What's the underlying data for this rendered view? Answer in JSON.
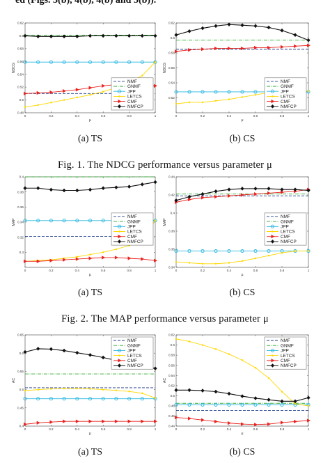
{
  "top_text": "ed (Figs. 3(b), 4(b), 4(b) and 5(b)).",
  "captions": [
    "Fig. 1.  The NDCG performance versus parameter μ",
    "Fig. 2.  The MAP performance versus parameter μ"
  ],
  "series_styles": {
    "NMF": {
      "color": "#1f3a8a",
      "dash": "4,2",
      "marker": "none"
    },
    "GNMF": {
      "color": "#33aa33",
      "dash": "5,1.5,1,1.5",
      "marker": "none"
    },
    "JPP": {
      "color": "#29b6e0",
      "dash": "",
      "marker": "circle"
    },
    "LETCS": {
      "color": "#ffd800",
      "dash": "",
      "marker": "dot"
    },
    "CMF": {
      "color": "#e8231f",
      "dash": "",
      "marker": "triangle"
    },
    "NMFCP": {
      "color": "#111111",
      "dash": "",
      "marker": "diamond"
    }
  },
  "chart_data": [
    {
      "id": "ndcg-ts",
      "type": "line",
      "subcaption": "(a)  TS",
      "ylabel": "NDCG",
      "xlabel": "μ",
      "xlim": [
        0,
        1
      ],
      "ylim": [
        0.48,
        0.62
      ],
      "xticks": [
        "0",
        "0.2",
        "0.4",
        "0.6",
        "0.8",
        "1"
      ],
      "yticks": [
        "0.48",
        "0.5",
        "0.52",
        "0.54",
        "0.56",
        "0.58",
        "0.6",
        "0.62"
      ],
      "legend": "bottom-right",
      "x": [
        0,
        0.1,
        0.2,
        0.3,
        0.4,
        0.5,
        0.6,
        0.7,
        0.8,
        0.9,
        1.0
      ],
      "series": [
        {
          "name": "NMF",
          "values": [
            0.51,
            0.51,
            0.51,
            0.51,
            0.51,
            0.51,
            0.51,
            0.51,
            0.51,
            0.51,
            0.51
          ]
        },
        {
          "name": "GNMF",
          "values": [
            0.601,
            0.601,
            0.601,
            0.601,
            0.601,
            0.601,
            0.601,
            0.601,
            0.601,
            0.601,
            0.601
          ]
        },
        {
          "name": "JPP",
          "values": [
            0.559,
            0.559,
            0.559,
            0.559,
            0.559,
            0.559,
            0.559,
            0.559,
            0.559,
            0.559,
            0.559
          ]
        },
        {
          "name": "LETCS",
          "values": [
            0.489,
            0.492,
            0.496,
            0.5,
            0.504,
            0.508,
            0.513,
            0.519,
            0.527,
            0.538,
            0.559
          ]
        },
        {
          "name": "CMF",
          "values": [
            0.51,
            0.511,
            0.512,
            0.514,
            0.516,
            0.519,
            0.522,
            0.524,
            0.524,
            0.523,
            0.522
          ]
        },
        {
          "name": "NMFCP",
          "values": [
            0.6,
            0.599,
            0.599,
            0.599,
            0.599,
            0.6,
            0.6,
            0.6,
            0.6,
            0.6,
            0.6
          ]
        }
      ]
    },
    {
      "id": "ndcg-cs",
      "type": "line",
      "subcaption": "(b)  CS",
      "ylabel": "NDCG",
      "xlabel": "μ",
      "xlim": [
        0,
        1
      ],
      "ylim": [
        0.5,
        0.62
      ],
      "xticks": [
        "0",
        "0.2",
        "0.4",
        "0.6",
        "0.8",
        "1"
      ],
      "yticks": [
        "0.52",
        "0.54",
        "0.56",
        "0.58",
        "0.6",
        "0.62"
      ],
      "legend": "bottom-right",
      "x": [
        0,
        0.1,
        0.2,
        0.3,
        0.4,
        0.5,
        0.6,
        0.7,
        0.8,
        0.9,
        1.0
      ],
      "series": [
        {
          "name": "NMF",
          "values": [
            0.585,
            0.585,
            0.585,
            0.585,
            0.585,
            0.585,
            0.585,
            0.585,
            0.585,
            0.585,
            0.585
          ]
        },
        {
          "name": "GNMF",
          "values": [
            0.597,
            0.597,
            0.597,
            0.597,
            0.597,
            0.597,
            0.597,
            0.597,
            0.597,
            0.597,
            0.597
          ]
        },
        {
          "name": "JPP",
          "values": [
            0.528,
            0.528,
            0.528,
            0.528,
            0.528,
            0.528,
            0.528,
            0.528,
            0.528,
            0.528,
            0.528
          ]
        },
        {
          "name": "LETCS",
          "values": [
            0.512,
            0.514,
            0.514,
            0.516,
            0.518,
            0.521,
            0.524,
            0.527,
            0.529,
            0.529,
            0.529
          ]
        },
        {
          "name": "CMF",
          "values": [
            0.582,
            0.584,
            0.585,
            0.586,
            0.586,
            0.586,
            0.587,
            0.587,
            0.588,
            0.589,
            0.59
          ]
        },
        {
          "name": "NMFCP",
          "values": [
            0.604,
            0.609,
            0.613,
            0.616,
            0.618,
            0.617,
            0.616,
            0.614,
            0.61,
            0.604,
            0.597
          ]
        }
      ]
    },
    {
      "id": "map-ts",
      "type": "line",
      "subcaption": "(a)  TS",
      "ylabel": "MAP",
      "xlabel": "μ",
      "xlim": [
        0,
        1
      ],
      "ylim": [
        0.28,
        0.4
      ],
      "xticks": [
        "0",
        "0.2",
        "0.4",
        "0.6",
        "0.8",
        "1"
      ],
      "yticks": [
        "0.3",
        "0.32",
        "0.34",
        "0.36",
        "0.38",
        "0.4"
      ],
      "legend": "right-center",
      "x": [
        0,
        0.1,
        0.2,
        0.3,
        0.4,
        0.5,
        0.6,
        0.7,
        0.8,
        0.9,
        1.0
      ],
      "series": [
        {
          "name": "NMF",
          "values": [
            0.321,
            0.321,
            0.321,
            0.321,
            0.321,
            0.321,
            0.321,
            0.321,
            0.321,
            0.321,
            0.321
          ]
        },
        {
          "name": "GNMF",
          "values": [
            0.4,
            0.4,
            0.4,
            0.4,
            0.4,
            0.4,
            0.4,
            0.4,
            0.4,
            0.4,
            0.4
          ]
        },
        {
          "name": "JPP",
          "values": [
            0.342,
            0.342,
            0.342,
            0.342,
            0.342,
            0.342,
            0.342,
            0.342,
            0.342,
            0.342,
            0.342
          ]
        },
        {
          "name": "LETCS",
          "values": [
            0.288,
            0.289,
            0.29,
            0.292,
            0.294,
            0.297,
            0.3,
            0.304,
            0.309,
            0.318,
            0.342
          ]
        },
        {
          "name": "CMF",
          "values": [
            0.288,
            0.288,
            0.289,
            0.29,
            0.291,
            0.292,
            0.293,
            0.293,
            0.292,
            0.291,
            0.289
          ]
        },
        {
          "name": "NMFCP",
          "values": [
            0.385,
            0.385,
            0.383,
            0.382,
            0.382,
            0.383,
            0.385,
            0.386,
            0.387,
            0.39,
            0.393
          ]
        }
      ]
    },
    {
      "id": "map-cs",
      "type": "line",
      "subcaption": "(b)  CS",
      "ylabel": "MAP",
      "xlabel": "μ",
      "xlim": [
        0,
        1
      ],
      "ylim": [
        0.34,
        0.44
      ],
      "xticks": [
        "0",
        "0.2",
        "0.4",
        "0.6",
        "0.8",
        "1"
      ],
      "yticks": [
        "0.34",
        "0.36",
        "0.38",
        "0.4",
        "0.42",
        "0.44"
      ],
      "legend": "right-center",
      "x": [
        0,
        0.1,
        0.2,
        0.3,
        0.4,
        0.5,
        0.6,
        0.7,
        0.8,
        0.9,
        1.0
      ],
      "series": [
        {
          "name": "NMF",
          "values": [
            0.419,
            0.419,
            0.419,
            0.419,
            0.419,
            0.419,
            0.419,
            0.419,
            0.419,
            0.419,
            0.419
          ]
        },
        {
          "name": "GNMF",
          "values": [
            0.421,
            0.421,
            0.421,
            0.421,
            0.421,
            0.421,
            0.421,
            0.421,
            0.421,
            0.421,
            0.421
          ]
        },
        {
          "name": "JPP",
          "values": [
            0.358,
            0.358,
            0.358,
            0.358,
            0.358,
            0.358,
            0.358,
            0.358,
            0.358,
            0.358,
            0.358
          ]
        },
        {
          "name": "LETCS",
          "values": [
            0.346,
            0.345,
            0.344,
            0.344,
            0.345,
            0.347,
            0.35,
            0.353,
            0.356,
            0.358,
            0.358
          ]
        },
        {
          "name": "CMF",
          "values": [
            0.412,
            0.415,
            0.417,
            0.418,
            0.419,
            0.42,
            0.421,
            0.422,
            0.423,
            0.424,
            0.426
          ]
        },
        {
          "name": "NMFCP",
          "values": [
            0.414,
            0.418,
            0.421,
            0.424,
            0.426,
            0.427,
            0.427,
            0.427,
            0.426,
            0.426,
            0.425
          ]
        }
      ]
    },
    {
      "id": "ac-ts",
      "type": "line",
      "subcaption": "(a)  TS",
      "ylabel": "AC",
      "xlabel": "μ",
      "xlim": [
        0,
        1
      ],
      "ylim": [
        0.4,
        0.65
      ],
      "xticks": [
        "0",
        "0.2",
        "0.4",
        "0.6",
        "0.8",
        "1"
      ],
      "yticks": [
        "0.4",
        "0.45",
        "0.5",
        "0.55",
        "0.6",
        "0.65"
      ],
      "legend": "top-right",
      "x": [
        0,
        0.1,
        0.2,
        0.3,
        0.4,
        0.5,
        0.6,
        0.7,
        0.8,
        0.9,
        1.0
      ],
      "series": [
        {
          "name": "NMF",
          "values": [
            0.505,
            0.505,
            0.505,
            0.505,
            0.505,
            0.505,
            0.505,
            0.505,
            0.505,
            0.505,
            0.505
          ]
        },
        {
          "name": "GNMF",
          "values": [
            0.543,
            0.543,
            0.543,
            0.543,
            0.543,
            0.543,
            0.543,
            0.543,
            0.543,
            0.543,
            0.543
          ]
        },
        {
          "name": "JPP",
          "values": [
            0.475,
            0.475,
            0.475,
            0.475,
            0.475,
            0.475,
            0.475,
            0.475,
            0.475,
            0.475,
            0.475
          ]
        },
        {
          "name": "LETCS",
          "values": [
            0.497,
            0.5,
            0.502,
            0.503,
            0.503,
            0.502,
            0.5,
            0.498,
            0.495,
            0.49,
            0.477
          ]
        },
        {
          "name": "CMF",
          "values": [
            0.405,
            0.409,
            0.411,
            0.413,
            0.413,
            0.413,
            0.413,
            0.413,
            0.413,
            0.413,
            0.413
          ]
        },
        {
          "name": "NMFCP",
          "values": [
            0.603,
            0.612,
            0.611,
            0.607,
            0.601,
            0.595,
            0.588,
            0.58,
            0.572,
            0.565,
            0.558
          ]
        }
      ]
    },
    {
      "id": "ac-cs",
      "type": "line",
      "subcaption": "(b)  CS",
      "ylabel": "AC",
      "xlabel": "μ",
      "xlim": [
        0,
        1
      ],
      "ylim": [
        0.44,
        0.62
      ],
      "xticks": [
        "0",
        "0.2",
        "0.4",
        "0.6",
        "0.8",
        "1"
      ],
      "yticks": [
        "0.44",
        "0.46",
        "0.48",
        "0.5",
        "0.52",
        "0.54",
        "0.56",
        "0.58",
        "0.6",
        "0.62"
      ],
      "legend": "top-right",
      "x": [
        0,
        0.1,
        0.2,
        0.3,
        0.4,
        0.5,
        0.6,
        0.7,
        0.8,
        0.9,
        1.0
      ],
      "series": [
        {
          "name": "NMF",
          "values": [
            0.471,
            0.471,
            0.471,
            0.471,
            0.471,
            0.471,
            0.471,
            0.471,
            0.471,
            0.471,
            0.471
          ]
        },
        {
          "name": "GNMF",
          "values": [
            0.485,
            0.485,
            0.485,
            0.485,
            0.485,
            0.485,
            0.485,
            0.485,
            0.485,
            0.485,
            0.485
          ]
        },
        {
          "name": "JPP",
          "values": [
            0.482,
            0.482,
            0.482,
            0.482,
            0.482,
            0.482,
            0.482,
            0.482,
            0.482,
            0.482,
            0.482
          ]
        },
        {
          "name": "LETCS",
          "values": [
            0.612,
            0.607,
            0.6,
            0.592,
            0.582,
            0.57,
            0.555,
            0.535,
            0.508,
            0.484,
            0.48
          ]
        },
        {
          "name": "CMF",
          "values": [
            0.457,
            0.455,
            0.452,
            0.449,
            0.446,
            0.444,
            0.443,
            0.444,
            0.447,
            0.449,
            0.451
          ]
        },
        {
          "name": "NMFCP",
          "values": [
            0.511,
            0.511,
            0.51,
            0.508,
            0.504,
            0.499,
            0.495,
            0.492,
            0.489,
            0.489,
            0.496
          ]
        }
      ]
    }
  ]
}
